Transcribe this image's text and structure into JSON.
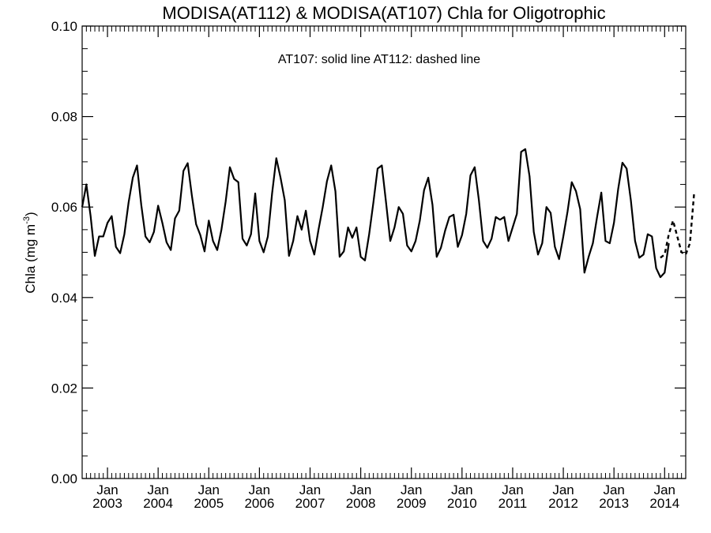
{
  "chart_data": {
    "type": "line",
    "title": "MODISA(AT112) & MODISA(AT107)  Chla for Oligotrophic",
    "annotation": "AT107: solid line   AT112: dashed line",
    "ylabel": "Chla (mg m",
    "ylabel_sup": "-3",
    "ylabel_close": ")",
    "ylim": [
      0.0,
      0.1
    ],
    "xlim": [
      "2002-07",
      "2014-06"
    ],
    "y_ticks": [
      "0.00",
      "0.02",
      "0.04",
      "0.06",
      "0.08",
      "0.10"
    ],
    "x_ticks": [
      {
        "month": "Jan",
        "year": "2003"
      },
      {
        "month": "Jan",
        "year": "2004"
      },
      {
        "month": "Jan",
        "year": "2005"
      },
      {
        "month": "Jan",
        "year": "2006"
      },
      {
        "month": "Jan",
        "year": "2007"
      },
      {
        "month": "Jan",
        "year": "2008"
      },
      {
        "month": "Jan",
        "year": "2009"
      },
      {
        "month": "Jan",
        "year": "2010"
      },
      {
        "month": "Jan",
        "year": "2011"
      },
      {
        "month": "Jan",
        "year": "2012"
      },
      {
        "month": "Jan",
        "year": "2013"
      },
      {
        "month": "Jan",
        "year": "2014"
      }
    ],
    "grid": false,
    "series": [
      {
        "name": "AT107",
        "style": "solid",
        "start": "2002-07",
        "values": [
          0.06,
          0.065,
          0.058,
          0.0492,
          0.0535,
          0.0535,
          0.0565,
          0.058,
          0.0512,
          0.0498,
          0.054,
          0.061,
          0.0665,
          0.0692,
          0.0605,
          0.0535,
          0.0522,
          0.0545,
          0.0603,
          0.0565,
          0.0522,
          0.0505,
          0.0575,
          0.0592,
          0.068,
          0.0697,
          0.0625,
          0.0562,
          0.0538,
          0.0502,
          0.057,
          0.0525,
          0.0505,
          0.055,
          0.0612,
          0.0688,
          0.0662,
          0.0655,
          0.053,
          0.0515,
          0.054,
          0.063,
          0.0525,
          0.05,
          0.0535,
          0.063,
          0.0708,
          0.0665,
          0.0615,
          0.0492,
          0.0525,
          0.058,
          0.055,
          0.0592,
          0.0525,
          0.0495,
          0.055,
          0.06,
          0.0657,
          0.0692,
          0.0635,
          0.049,
          0.0502,
          0.0555,
          0.0532,
          0.0555,
          0.049,
          0.0482,
          0.054,
          0.061,
          0.0685,
          0.0692,
          0.061,
          0.0525,
          0.0555,
          0.06,
          0.0585,
          0.0515,
          0.0502,
          0.0525,
          0.057,
          0.0637,
          0.0665,
          0.0605,
          0.049,
          0.051,
          0.0548,
          0.0578,
          0.0583,
          0.0512,
          0.0538,
          0.0585,
          0.067,
          0.0688,
          0.0615,
          0.0525,
          0.051,
          0.053,
          0.0578,
          0.0572,
          0.0578,
          0.0525,
          0.0555,
          0.0585,
          0.0722,
          0.0728,
          0.0668,
          0.0545,
          0.0495,
          0.052,
          0.06,
          0.0587,
          0.0512,
          0.0485,
          0.0535,
          0.059,
          0.0655,
          0.0635,
          0.0595,
          0.0455,
          0.049,
          0.052,
          0.0578,
          0.0632,
          0.0525,
          0.052,
          0.0565,
          0.064,
          0.0698,
          0.0685,
          0.0615,
          0.0525,
          0.0488,
          0.0495,
          0.054,
          0.0535,
          0.0465,
          0.0445,
          0.0455,
          0.052
        ]
      },
      {
        "name": "AT112",
        "style": "dashed",
        "start": "2013-12",
        "values": [
          0.0488,
          0.0495,
          0.054,
          0.057,
          0.0535,
          0.05,
          0.0495,
          0.052,
          0.0632
        ]
      }
    ]
  }
}
